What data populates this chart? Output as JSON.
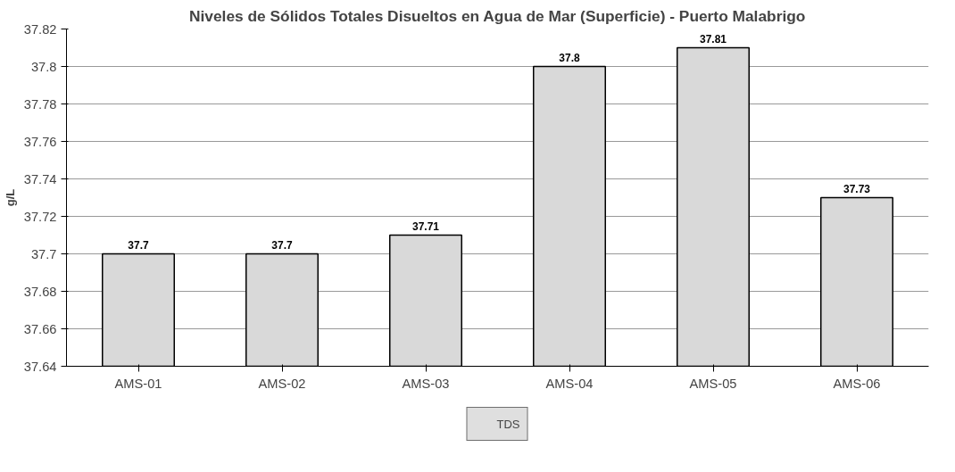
{
  "chart_data": {
    "type": "bar",
    "title": "Niveles de Sólidos Totales Disueltos en Agua de Mar (Superficie) - Puerto Malabrigo",
    "ylabel": "g/L",
    "categories": [
      "AMS-01",
      "AMS-02",
      "AMS-03",
      "AMS-04",
      "AMS-05",
      "AMS-06"
    ],
    "series": [
      {
        "name": "TDS",
        "color": "#d9d9d9",
        "values": [
          37.7,
          37.7,
          37.71,
          37.8,
          37.81,
          37.73
        ]
      }
    ],
    "ylim": [
      37.64,
      37.82
    ],
    "yticks": [
      37.64,
      37.66,
      37.68,
      37.7,
      37.72,
      37.74,
      37.76,
      37.78,
      37.8,
      37.82
    ],
    "grid": "y",
    "legend": "bottom",
    "data_labels": true
  }
}
